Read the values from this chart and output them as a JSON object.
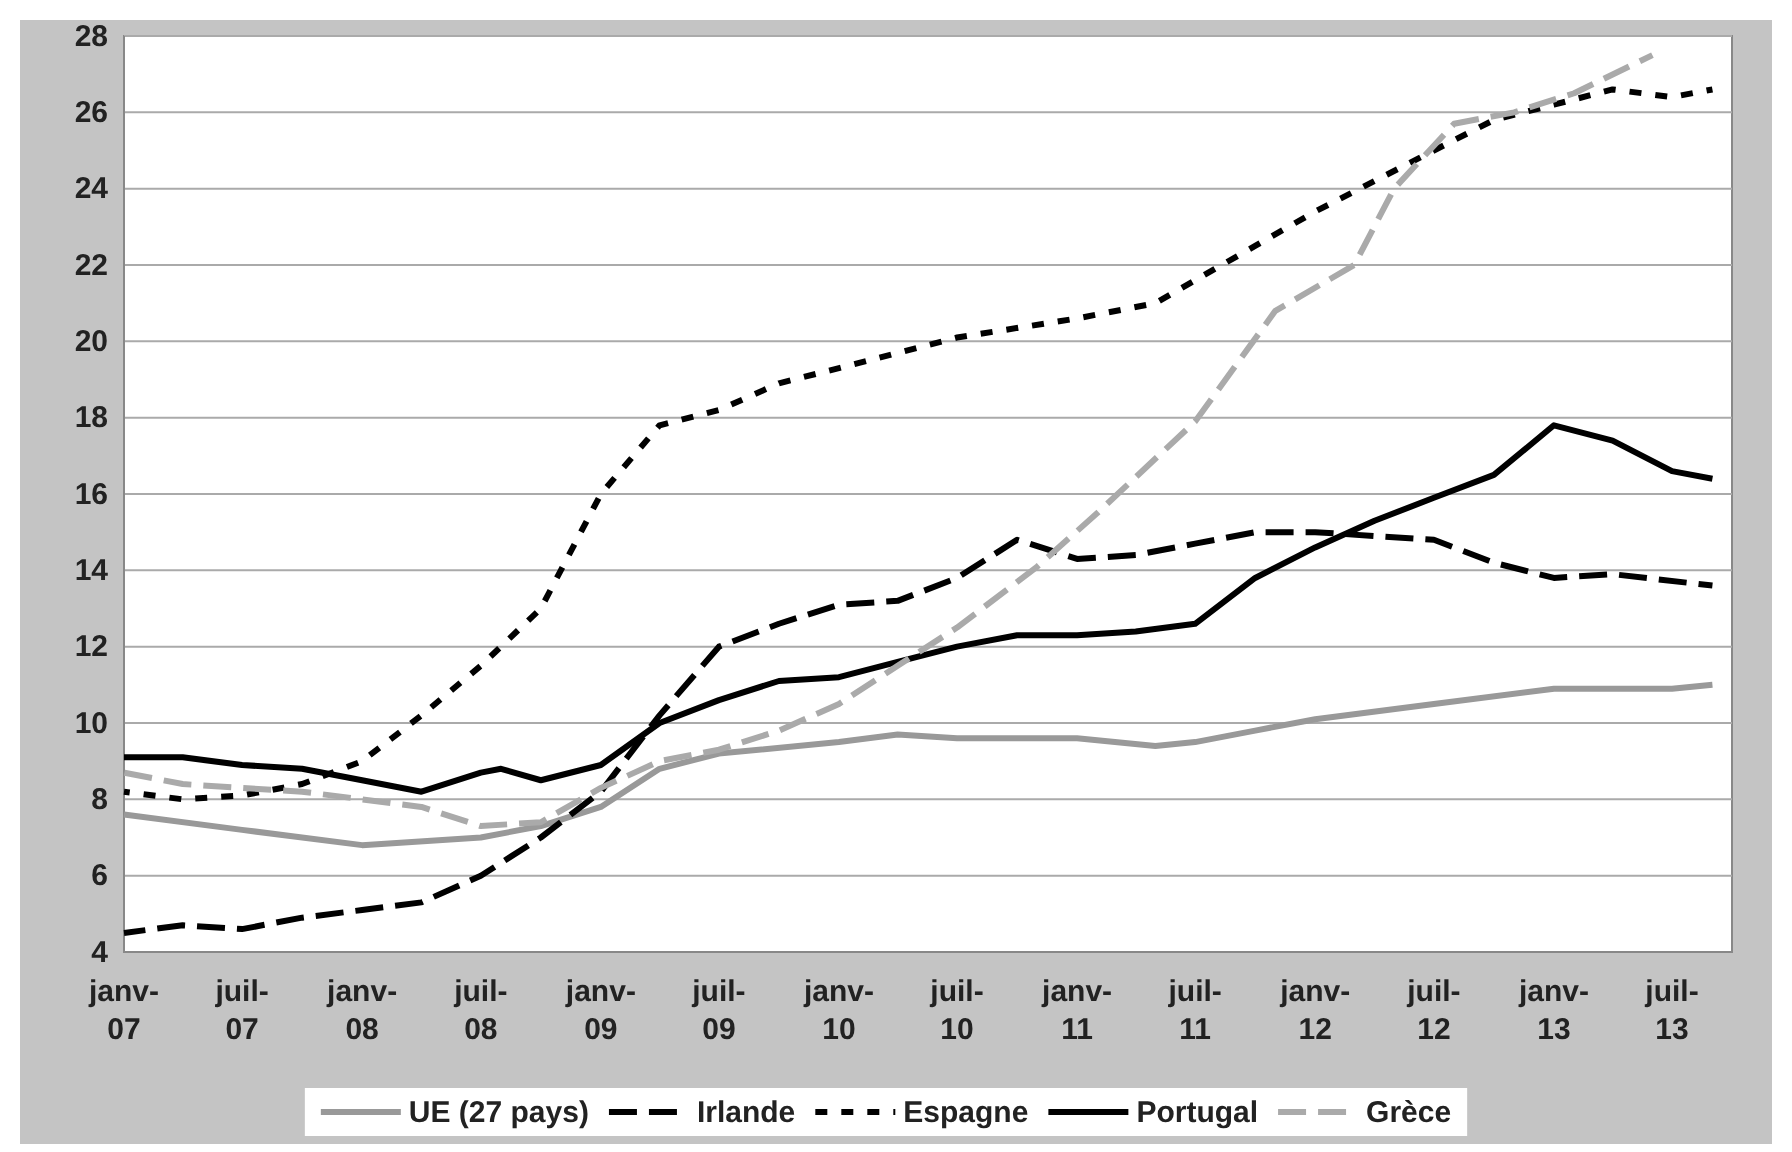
{
  "chart_data": {
    "type": "line",
    "ylim": [
      4,
      28
    ],
    "yticks": [
      4,
      6,
      8,
      10,
      12,
      14,
      16,
      18,
      20,
      22,
      24,
      26,
      28
    ],
    "xlim": [
      "2007-01",
      "2013-10"
    ],
    "xticks": [
      {
        "value": "2007-01",
        "label": "janv-07"
      },
      {
        "value": "2007-07",
        "label": "juil-07"
      },
      {
        "value": "2008-01",
        "label": "janv-08"
      },
      {
        "value": "2008-07",
        "label": "juil-08"
      },
      {
        "value": "2009-01",
        "label": "janv-09"
      },
      {
        "value": "2009-07",
        "label": "juil-09"
      },
      {
        "value": "2010-01",
        "label": "janv-10"
      },
      {
        "value": "2010-07",
        "label": "juil-10"
      },
      {
        "value": "2011-01",
        "label": "janv-11"
      },
      {
        "value": "2011-07",
        "label": "juil-11"
      },
      {
        "value": "2012-01",
        "label": "janv-12"
      },
      {
        "value": "2012-07",
        "label": "juil-12"
      },
      {
        "value": "2013-01",
        "label": "janv-13"
      },
      {
        "value": "2013-07",
        "label": "juil-13"
      }
    ],
    "grid": "y",
    "legend": "bottom",
    "marker": "none",
    "series": [
      {
        "name": "UE (27 pays)",
        "color": "#999999",
        "line_style": "solid",
        "x": [
          "2007-01",
          "2007-07",
          "2008-01",
          "2008-07",
          "2008-10",
          "2009-01",
          "2009-04",
          "2009-07",
          "2010-01",
          "2010-04",
          "2010-07",
          "2011-01",
          "2011-05",
          "2011-07",
          "2011-10",
          "2012-01",
          "2012-07",
          "2013-01",
          "2013-07",
          "2013-09"
        ],
        "values": [
          7.6,
          7.2,
          6.8,
          7.0,
          7.3,
          7.8,
          8.8,
          9.2,
          9.5,
          9.7,
          9.6,
          9.6,
          9.4,
          9.5,
          9.8,
          10.1,
          10.5,
          10.9,
          10.9,
          11.0
        ]
      },
      {
        "name": "Irlande",
        "color": "#000000",
        "line_style": "dashed",
        "x": [
          "2007-01",
          "2007-04",
          "2007-07",
          "2007-10",
          "2008-01",
          "2008-04",
          "2008-07",
          "2008-10",
          "2009-01",
          "2009-04",
          "2009-07",
          "2009-10",
          "2010-01",
          "2010-04",
          "2010-07",
          "2010-10",
          "2011-01",
          "2011-04",
          "2011-07",
          "2011-10",
          "2012-01",
          "2012-04",
          "2012-07",
          "2012-10",
          "2013-01",
          "2013-04",
          "2013-09"
        ],
        "values": [
          4.5,
          4.7,
          4.6,
          4.9,
          5.1,
          5.3,
          6.0,
          7.0,
          8.2,
          10.2,
          12.0,
          12.6,
          13.1,
          13.2,
          13.8,
          14.8,
          14.3,
          14.4,
          14.7,
          15.0,
          15.0,
          14.9,
          14.8,
          14.2,
          13.8,
          13.9,
          13.6
        ]
      },
      {
        "name": "Espagne",
        "color": "#000000",
        "line_style": "dotted",
        "x": [
          "2007-01",
          "2007-04",
          "2007-07",
          "2007-10",
          "2008-01",
          "2008-04",
          "2008-07",
          "2008-10",
          "2009-01",
          "2009-04",
          "2009-07",
          "2009-10",
          "2010-01",
          "2010-07",
          "2011-01",
          "2011-05",
          "2011-07",
          "2011-10",
          "2012-01",
          "2012-04",
          "2012-07",
          "2012-10",
          "2013-01",
          "2013-04",
          "2013-07",
          "2013-09"
        ],
        "values": [
          8.2,
          8.0,
          8.1,
          8.4,
          9.0,
          10.2,
          11.5,
          13.0,
          16.0,
          17.8,
          18.2,
          18.9,
          19.3,
          20.1,
          20.6,
          21.0,
          21.6,
          22.5,
          23.4,
          24.2,
          25.0,
          25.8,
          26.2,
          26.6,
          26.4,
          26.6
        ]
      },
      {
        "name": "Portugal",
        "color": "#000000",
        "line_style": "solid",
        "x": [
          "2007-01",
          "2007-04",
          "2007-07",
          "2007-10",
          "2008-01",
          "2008-04",
          "2008-07",
          "2008-08",
          "2008-10",
          "2009-01",
          "2009-04",
          "2009-07",
          "2009-10",
          "2010-01",
          "2010-04",
          "2010-07",
          "2010-10",
          "2011-01",
          "2011-04",
          "2011-07",
          "2011-10",
          "2012-01",
          "2012-04",
          "2012-07",
          "2012-10",
          "2013-01",
          "2013-04",
          "2013-07",
          "2013-09"
        ],
        "values": [
          9.1,
          9.1,
          8.9,
          8.8,
          8.5,
          8.2,
          8.7,
          8.8,
          8.5,
          8.9,
          10.0,
          10.6,
          11.1,
          11.2,
          11.6,
          12.0,
          12.3,
          12.3,
          12.4,
          12.6,
          13.8,
          14.6,
          15.3,
          15.9,
          16.5,
          17.8,
          17.4,
          16.6,
          16.4
        ]
      },
      {
        "name": "Grèce",
        "color": "#aaaaaa",
        "line_style": "dashed",
        "x": [
          "2007-01",
          "2007-04",
          "2007-07",
          "2007-10",
          "2008-01",
          "2008-04",
          "2008-07",
          "2008-10",
          "2009-01",
          "2009-04",
          "2009-07",
          "2009-10",
          "2010-01",
          "2010-04",
          "2010-07",
          "2010-11",
          "2011-02",
          "2011-07",
          "2011-11",
          "2012-03",
          "2012-05",
          "2012-08",
          "2012-11",
          "2013-02",
          "2013-06"
        ],
        "values": [
          8.7,
          8.4,
          8.3,
          8.2,
          8.0,
          7.8,
          7.3,
          7.4,
          8.3,
          9.0,
          9.3,
          9.8,
          10.5,
          11.5,
          12.5,
          14.1,
          15.5,
          17.9,
          20.8,
          22.0,
          24.0,
          25.7,
          26.0,
          26.5,
          27.5
        ]
      }
    ]
  }
}
